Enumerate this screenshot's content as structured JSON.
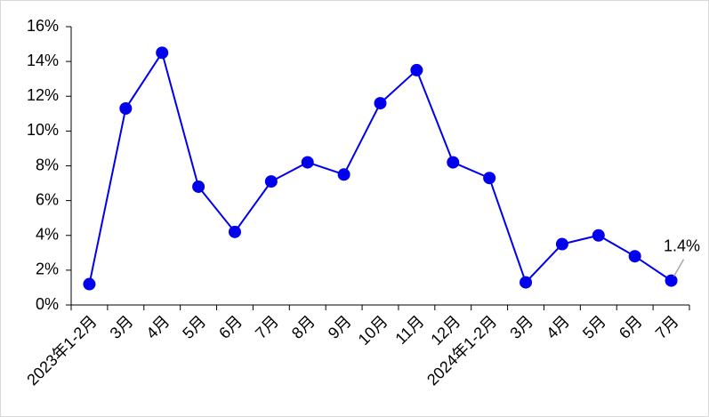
{
  "chart_data": {
    "type": "line",
    "categories": [
      "2023年1-2月",
      "3月",
      "4月",
      "5月",
      "6月",
      "7月",
      "8月",
      "9月",
      "10月",
      "11月",
      "12月",
      "2024年1-2月",
      "3月",
      "4月",
      "5月",
      "6月",
      "7月"
    ],
    "series": [
      {
        "color": "#0000ee",
        "values": [
          1.2,
          11.3,
          14.5,
          6.8,
          4.2,
          7.1,
          8.2,
          7.5,
          11.6,
          13.5,
          8.2,
          7.3,
          1.3,
          3.5,
          4.0,
          2.8,
          1.4
        ],
        "value_labels": [
          null,
          null,
          null,
          null,
          null,
          null,
          null,
          null,
          null,
          null,
          null,
          null,
          null,
          null,
          null,
          null,
          "1.4%"
        ]
      }
    ],
    "ylim": [
      0,
      16
    ],
    "yticks": [
      {
        "value": 0,
        "label": "0%"
      },
      {
        "value": 2,
        "label": "2%"
      },
      {
        "value": 4,
        "label": "4%"
      },
      {
        "value": 6,
        "label": "6%"
      },
      {
        "value": 8,
        "label": "8%"
      },
      {
        "value": 10,
        "label": "10%"
      },
      {
        "value": 12,
        "label": "12%"
      },
      {
        "value": 14,
        "label": "14%"
      },
      {
        "value": 16,
        "label": "16%"
      }
    ],
    "grid": false
  }
}
